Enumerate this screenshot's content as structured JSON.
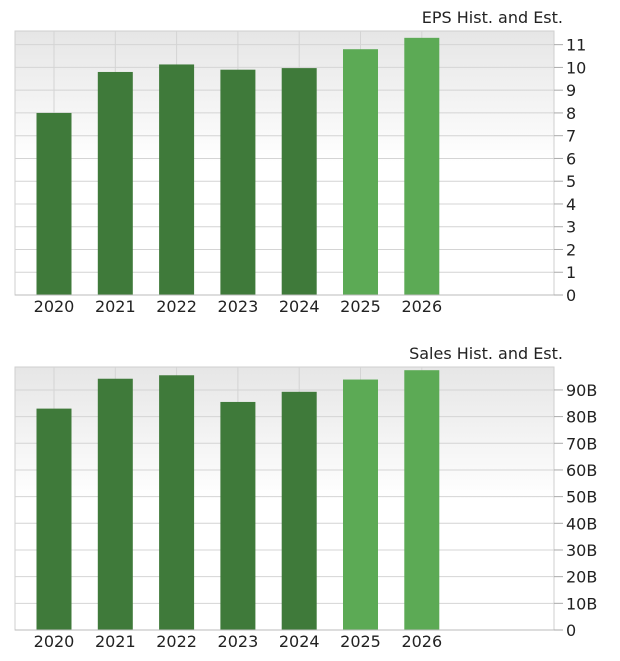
{
  "colors": {
    "historical": "#3f7a3a",
    "estimate": "#5caa55",
    "grid": "#d4d4d4",
    "axis": "#aaaaaa"
  },
  "chart_data": [
    {
      "type": "bar",
      "title": "EPS Hist. and Est.",
      "categories": [
        "2020",
        "2021",
        "2022",
        "2023",
        "2024",
        "2025",
        "2026"
      ],
      "values": [
        8.0,
        9.8,
        10.13,
        9.9,
        9.97,
        10.8,
        11.3
      ],
      "estimate": [
        false,
        false,
        false,
        false,
        false,
        true,
        true
      ],
      "ylim": [
        0,
        11.6
      ],
      "yticks": [
        0,
        1,
        2,
        3,
        4,
        5,
        6,
        7,
        8,
        9,
        10,
        11
      ],
      "ytick_labels": [
        "0",
        "1",
        "2",
        "3",
        "4",
        "5",
        "6",
        "7",
        "8",
        "9",
        "10",
        "11"
      ],
      "xlabel": "",
      "ylabel": "",
      "grid": true,
      "yaxis_side": "right"
    },
    {
      "type": "bar",
      "title": "Sales Hist. and Est.",
      "categories": [
        "2020",
        "2021",
        "2022",
        "2023",
        "2024",
        "2025",
        "2026"
      ],
      "values": [
        83.0,
        94.2,
        95.5,
        85.5,
        89.3,
        93.9,
        97.4
      ],
      "units": "B",
      "estimate": [
        false,
        false,
        false,
        false,
        false,
        true,
        true
      ],
      "ylim": [
        0,
        98.6
      ],
      "yticks": [
        0,
        10,
        20,
        30,
        40,
        50,
        60,
        70,
        80,
        90
      ],
      "ytick_labels": [
        "0",
        "10B",
        "20B",
        "30B",
        "40B",
        "50B",
        "60B",
        "70B",
        "80B",
        "90B"
      ],
      "xlabel": "",
      "ylabel": "",
      "grid": true,
      "yaxis_side": "right"
    }
  ]
}
